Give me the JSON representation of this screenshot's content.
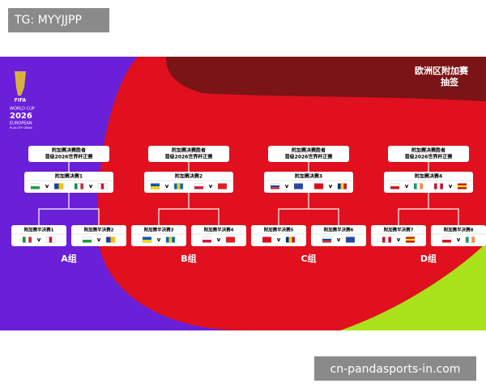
{
  "watermark": "TG: MYYJJPP",
  "header": {
    "title": "欧洲区附加赛",
    "subtitle": "抽签"
  },
  "logo": {
    "brand": "FIFA",
    "line1": "WORLD CUP",
    "year": "2026",
    "line2": "EUROPEAN",
    "line3": "PLAY-OFF DRAW"
  },
  "versus": "v",
  "groups": [
    {
      "winner": [
        "附加赛决赛胜者",
        "晋级2026世界杯正赛"
      ],
      "final": "附加赛决赛1",
      "semis": [
        "附加赛半决赛1",
        "附加赛半决赛2"
      ],
      "label": "A组"
    },
    {
      "winner": [
        "附加赛决赛胜者",
        "晋级2026世界杯正赛"
      ],
      "final": "附加赛决赛2",
      "semis": [
        "附加赛半决赛3",
        "附加赛半决赛4"
      ],
      "label": "B组"
    },
    {
      "winner": [
        "附加赛决赛胜者",
        "晋级2026世界杯正赛"
      ],
      "final": "附加赛决赛3",
      "semis": [
        "附加赛半决赛5",
        "附加赛半决赛6"
      ],
      "label": "C组"
    },
    {
      "winner": [
        "附加赛决赛胜者",
        "晋级2026世界杯正赛"
      ],
      "final": "附加赛决赛4",
      "semis": [
        "附加赛半决赛7",
        "附加赛半决赛8"
      ],
      "label": "D组"
    }
  ],
  "footer": "cn-pandasports-in.com"
}
